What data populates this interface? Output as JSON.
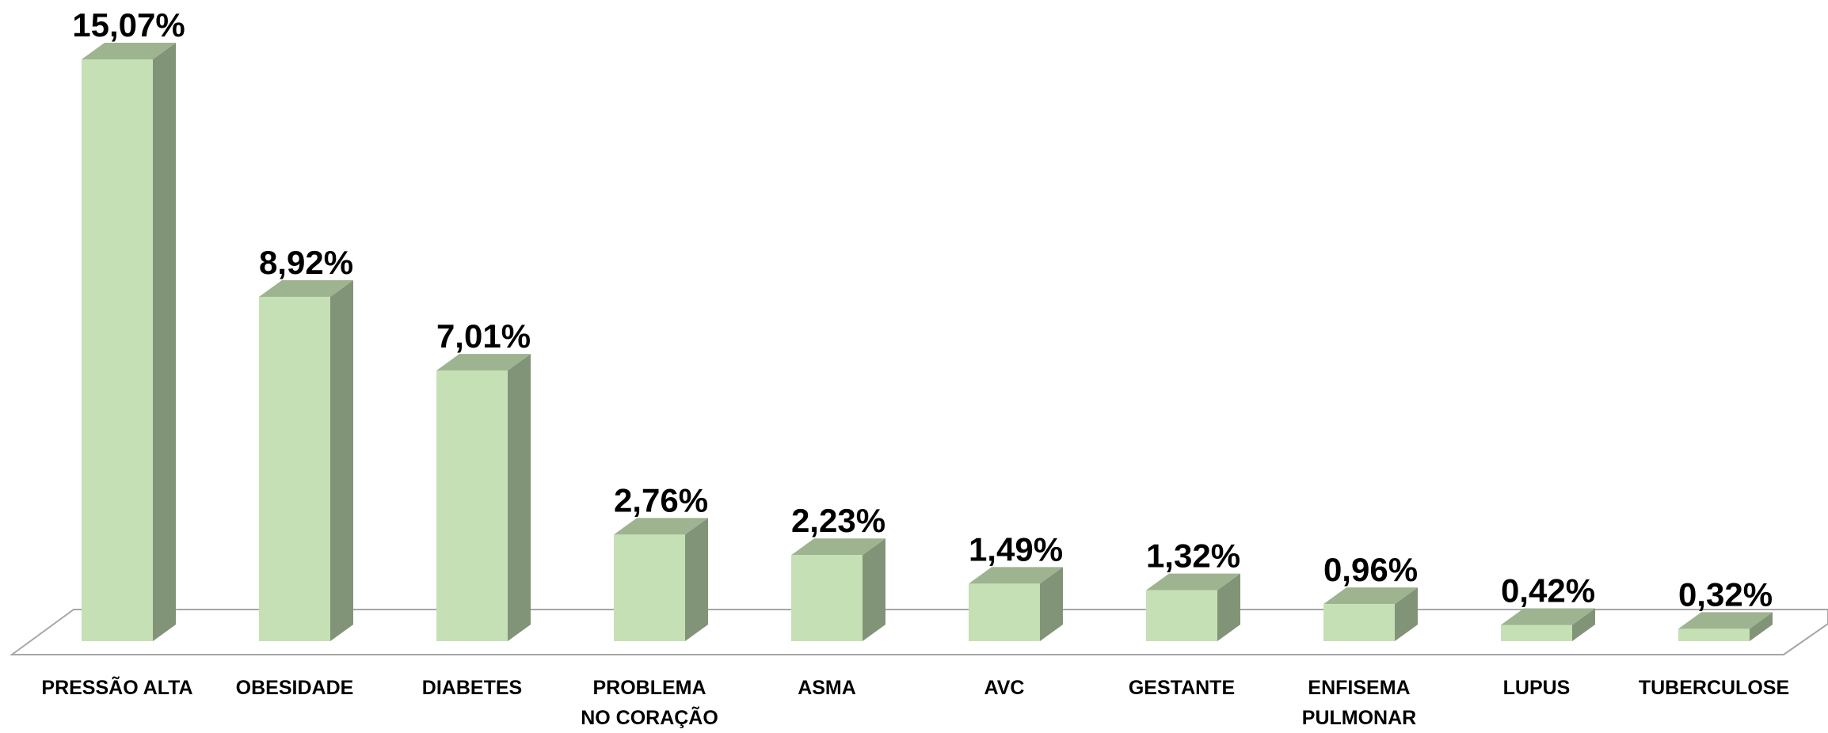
{
  "chart_data": {
    "type": "bar3d",
    "categories": [
      "PRESSÃO ALTA",
      "OBESIDADE",
      "DIABETES",
      "PROBLEMA\nNO CORAÇÃO",
      "ASMA",
      "AVC",
      "GESTANTE",
      "ENFISEMA\nPULMONAR",
      "LUPUS",
      "TUBERCULOSE"
    ],
    "values": [
      15.07,
      8.92,
      7.01,
      2.76,
      2.23,
      1.49,
      1.32,
      0.96,
      0.42,
      0.32
    ],
    "value_labels": [
      "15,07%",
      "8,92%",
      "7,01%",
      "2,76%",
      "2,23%",
      "1,49%",
      "1,32%",
      "0,96%",
      "0,42%",
      "0,32%"
    ],
    "color": "#c5e0b4"
  }
}
